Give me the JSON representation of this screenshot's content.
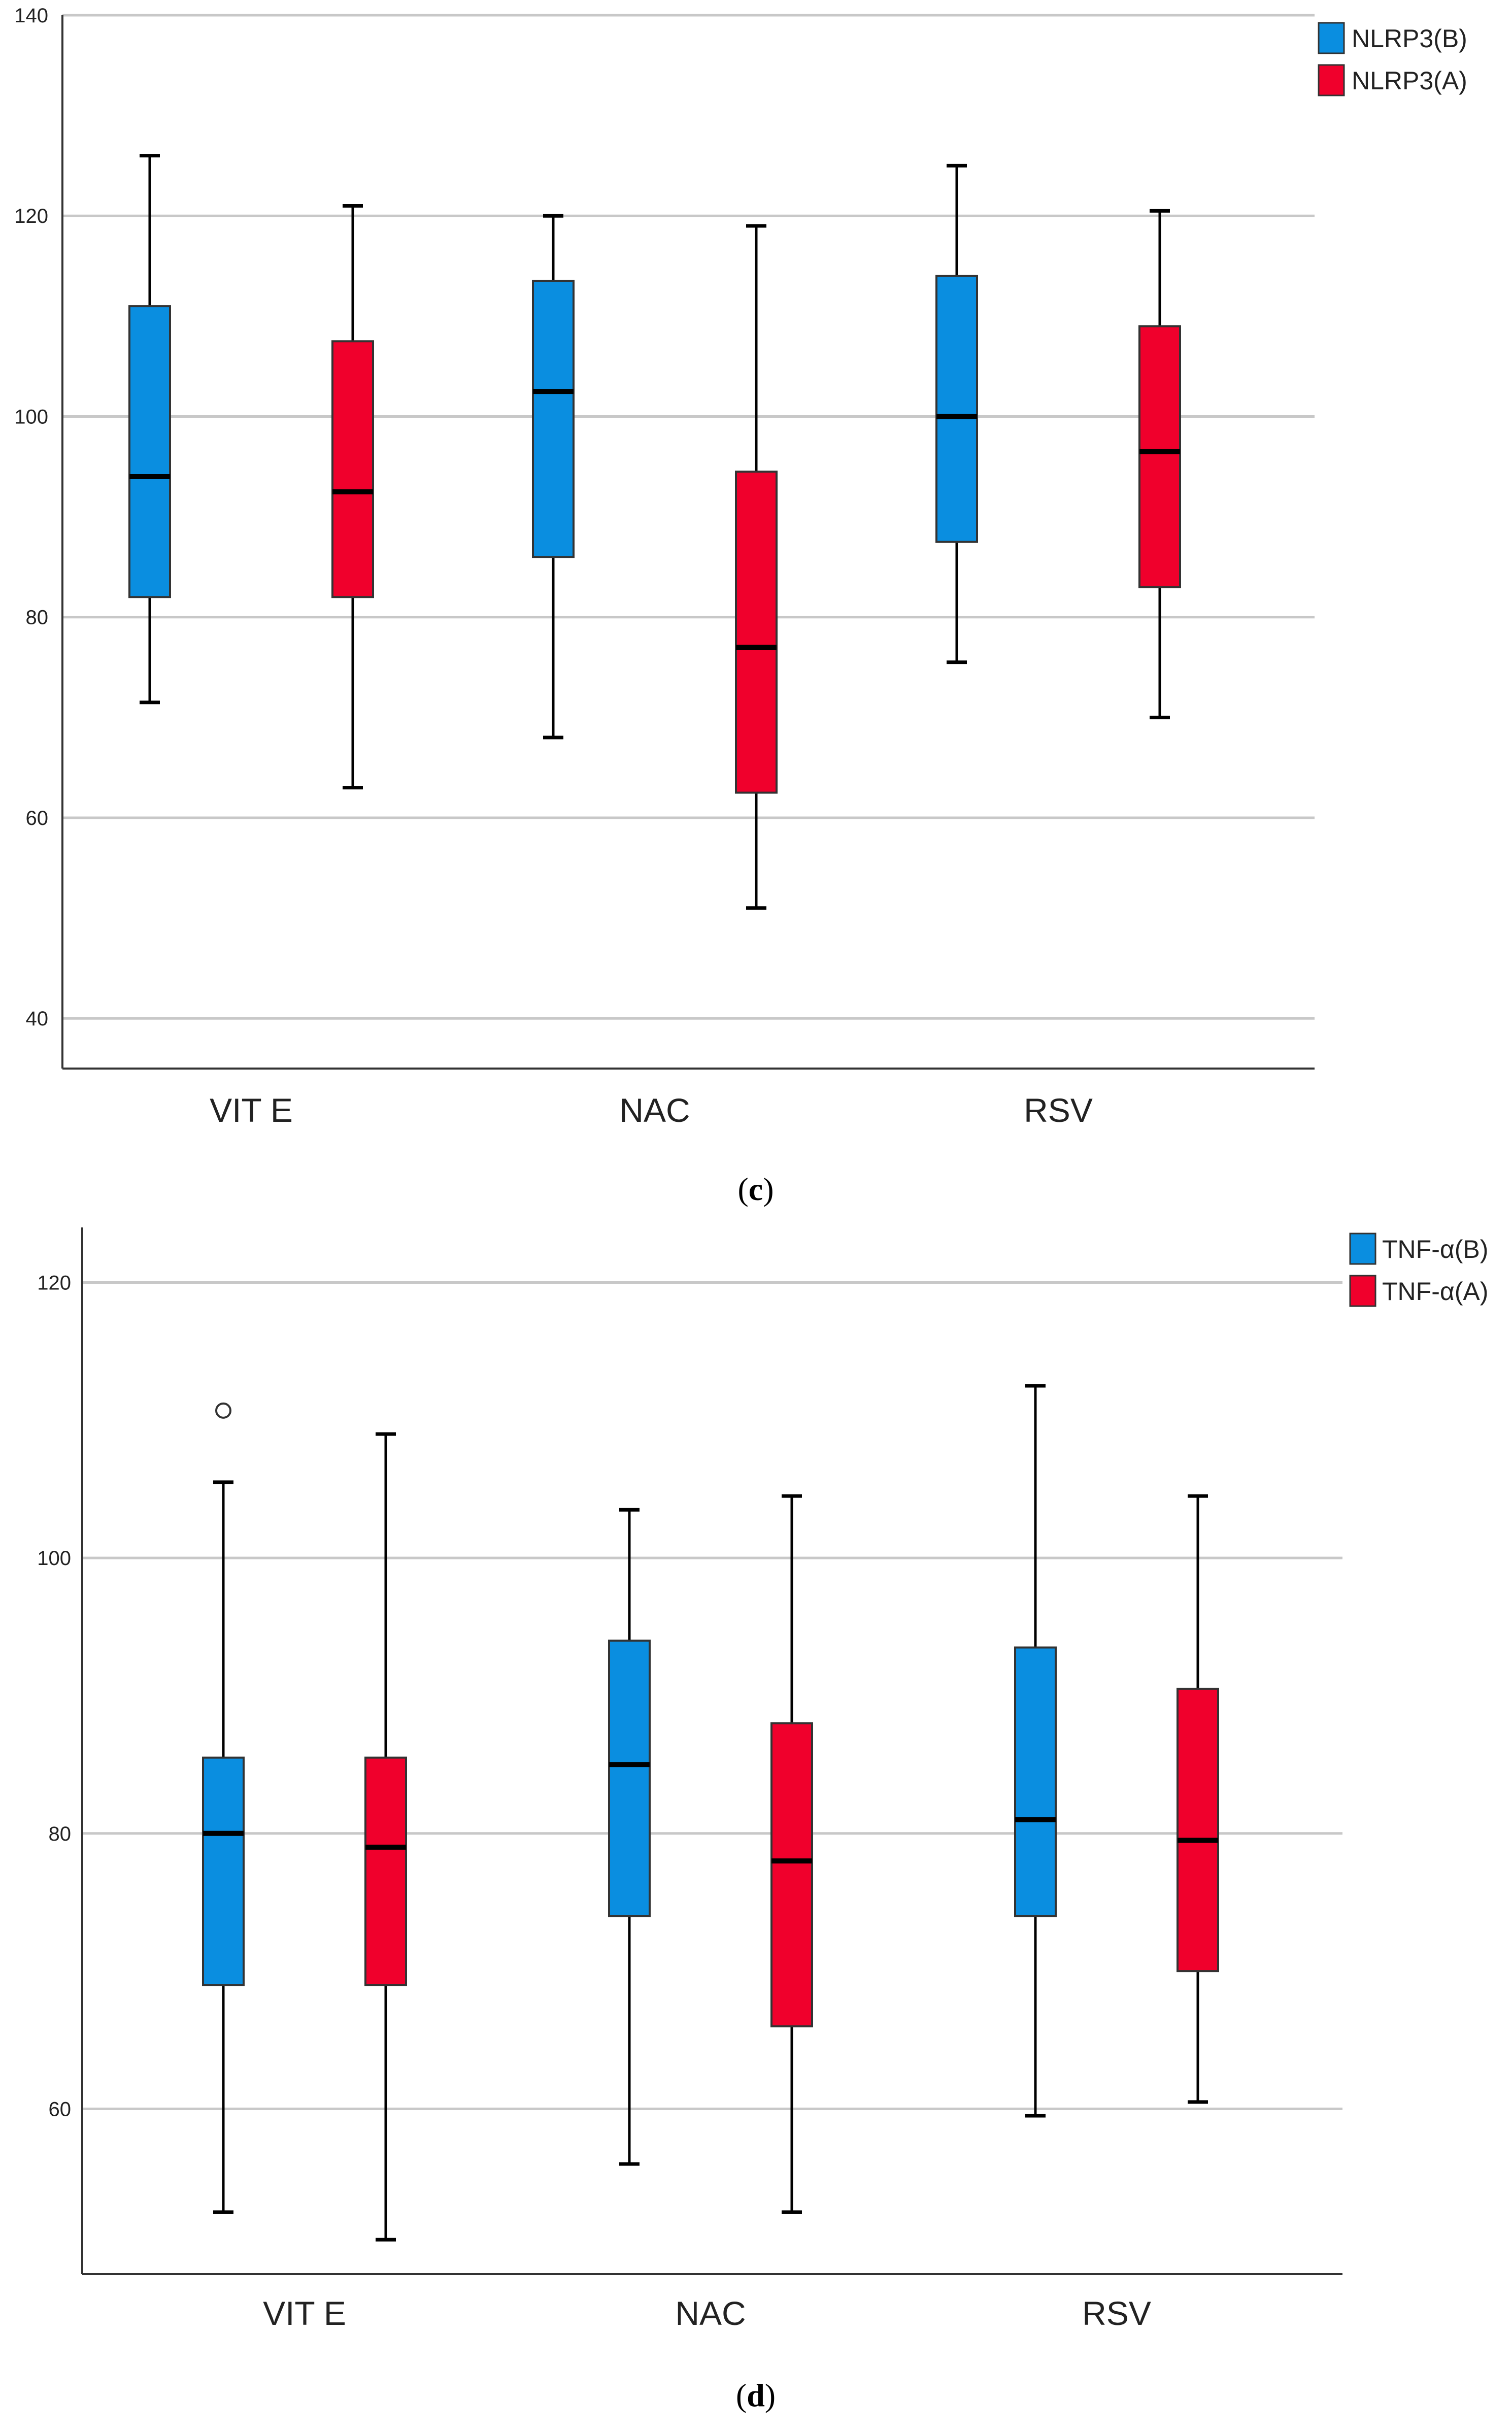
{
  "colors": {
    "before": "#0a8ee0",
    "after": "#f0002c",
    "grid": "#c8c8c8",
    "axis": "#333333"
  },
  "chart_data": [
    {
      "type": "boxplot",
      "panel_label": {
        "open": "(",
        "letter": "c",
        "close": ")"
      },
      "categories": [
        "VIT E",
        "NAC",
        "RSV"
      ],
      "ylim": [
        35,
        140
      ],
      "yticks": [
        40,
        60,
        80,
        100,
        120,
        140
      ],
      "grid": true,
      "legend_position": "top-right",
      "series": [
        {
          "name": "NLRP3(B)",
          "color_key": "before",
          "boxes": [
            {
              "min": 71.5,
              "q1": 82,
              "median": 94,
              "q3": 111,
              "max": 126,
              "outliers": []
            },
            {
              "min": 68,
              "q1": 86,
              "median": 102.5,
              "q3": 113.5,
              "max": 120,
              "outliers": []
            },
            {
              "min": 75.5,
              "q1": 87.5,
              "median": 100,
              "q3": 114,
              "max": 125,
              "outliers": []
            }
          ]
        },
        {
          "name": "NLRP3(A)",
          "color_key": "after",
          "boxes": [
            {
              "min": 63,
              "q1": 82,
              "median": 92.5,
              "q3": 107.5,
              "max": 121,
              "outliers": []
            },
            {
              "min": 51,
              "q1": 62.5,
              "median": 77,
              "q3": 94.5,
              "max": 119,
              "outliers": []
            },
            {
              "min": 70,
              "q1": 83,
              "median": 96.5,
              "q3": 109,
              "max": 120.5,
              "outliers": []
            }
          ]
        }
      ]
    },
    {
      "type": "boxplot",
      "panel_label": {
        "open": "(",
        "letter": "d",
        "close": ")"
      },
      "categories": [
        "VIT E",
        "NAC",
        "RSV"
      ],
      "ylim": [
        48,
        124
      ],
      "yticks": [
        60,
        80,
        100,
        120
      ],
      "grid": true,
      "legend_position": "top-right",
      "series": [
        {
          "name": "TNF-α(B)",
          "color_key": "before",
          "boxes": [
            {
              "min": 52.5,
              "q1": 69,
              "median": 80,
              "q3": 85.5,
              "max": 105.5,
              "outliers": [
                110.7
              ]
            },
            {
              "min": 56,
              "q1": 74,
              "median": 85,
              "q3": 94,
              "max": 103.5,
              "outliers": []
            },
            {
              "min": 59.5,
              "q1": 74,
              "median": 81,
              "q3": 93.5,
              "max": 112.5,
              "outliers": []
            }
          ]
        },
        {
          "name": "TNF-α(A)",
          "color_key": "after",
          "boxes": [
            {
              "min": 50.5,
              "q1": 69,
              "median": 79,
              "q3": 85.5,
              "max": 109,
              "outliers": []
            },
            {
              "min": 52.5,
              "q1": 66,
              "median": 78,
              "q3": 88,
              "max": 104.5,
              "outliers": []
            },
            {
              "min": 60.5,
              "q1": 70,
              "median": 79.5,
              "q3": 90.5,
              "max": 104.5,
              "outliers": []
            }
          ]
        }
      ]
    }
  ]
}
